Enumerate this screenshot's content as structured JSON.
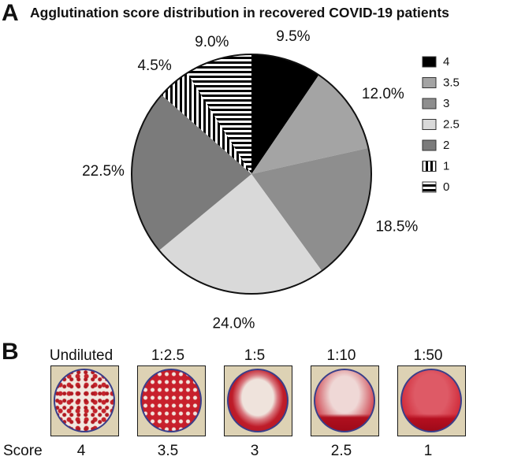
{
  "panel_a": {
    "letter": "A"
  },
  "panel_b": {
    "letter": "B",
    "score_label": "Score",
    "wells": [
      {
        "dilution": "Undiluted",
        "score": "4"
      },
      {
        "dilution": "1:2.5",
        "score": "3.5"
      },
      {
        "dilution": "1:5",
        "score": "3"
      },
      {
        "dilution": "1:10",
        "score": "2.5"
      },
      {
        "dilution": "1:50",
        "score": "1"
      }
    ]
  },
  "chart_data": {
    "type": "pie",
    "title": "Agglutination score distribution in recovered COVID-19 patients",
    "slices": [
      {
        "label": "4",
        "value": 9.5,
        "label_text": "9.5%",
        "fill": "#000000"
      },
      {
        "label": "3.5",
        "value": 12.0,
        "label_text": "12.0%",
        "fill": "#a4a4a4"
      },
      {
        "label": "3",
        "value": 18.5,
        "label_text": "18.5%",
        "fill": "#8e8e8e"
      },
      {
        "label": "2.5",
        "value": 24.0,
        "label_text": "24.0%",
        "fill": "#d9d9d9"
      },
      {
        "label": "2",
        "value": 22.5,
        "label_text": "22.5%",
        "fill": "#7b7b7b"
      },
      {
        "label": "1",
        "value": 4.5,
        "label_text": "4.5%",
        "fill": "pattern-vertical"
      },
      {
        "label": "0",
        "value": 9.0,
        "label_text": "9.0%",
        "fill": "pattern-horizontal"
      }
    ],
    "legend_position": "right"
  }
}
